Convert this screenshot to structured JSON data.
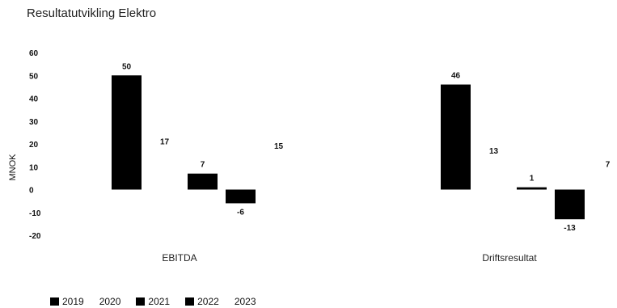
{
  "title": "Resultatutvikling Elektro",
  "chart_data": {
    "type": "bar",
    "title": "Resultatutvikling Elektro",
    "ylabel": "MNOK",
    "xlabel": "",
    "ylim": [
      -20,
      60
    ],
    "yticks": [
      60,
      50,
      40,
      30,
      20,
      10,
      0,
      -10,
      -20
    ],
    "categories": [
      "EBITDA",
      "Driftsresultat"
    ],
    "series": [
      {
        "name": "2019",
        "values": [
          50,
          46
        ],
        "color": "#000000"
      },
      {
        "name": "2020",
        "values": [
          17,
          13
        ],
        "color": "#ffffff"
      },
      {
        "name": "2021",
        "values": [
          7,
          1
        ],
        "color": "#000000"
      },
      {
        "name": "2022",
        "values": [
          -6,
          -13
        ],
        "color": "#000000"
      },
      {
        "name": "2023",
        "values": [
          15,
          7
        ],
        "color": "#ffffff"
      }
    ],
    "legend_position": "bottom-left",
    "grid": false
  }
}
